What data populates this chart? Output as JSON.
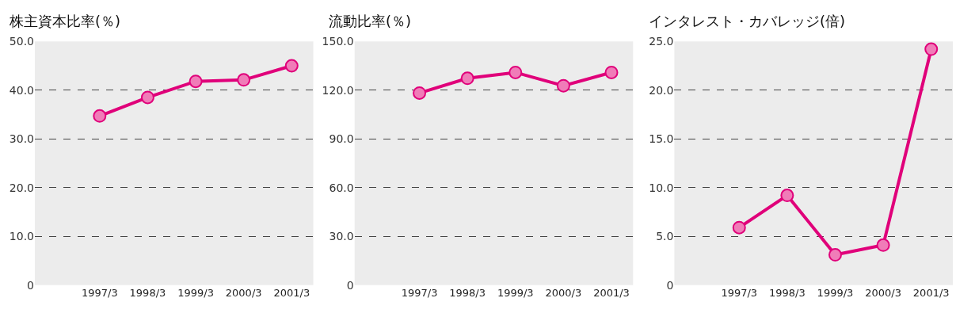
{
  "chart_data": [
    {
      "type": "line",
      "title": "株主資本比率(％)",
      "categories": [
        "1997/3",
        "1998/3",
        "1999/3",
        "2000/3",
        "2001/3"
      ],
      "series": [
        {
          "color": "#e0007a",
          "values": [
            34.7,
            38.5,
            41.8,
            42.1,
            45.0
          ]
        }
      ],
      "ylim": [
        0,
        50
      ],
      "yticks": [
        {
          "value": 0,
          "label": "0"
        },
        {
          "value": 10,
          "label": "10.0"
        },
        {
          "value": 20,
          "label": "20.0"
        },
        {
          "value": 30,
          "label": "30.0"
        },
        {
          "value": 40,
          "label": "40.0"
        },
        {
          "value": 50,
          "label": "50.0"
        }
      ],
      "grid": "y",
      "marker": "circle"
    },
    {
      "type": "line",
      "title": "流動比率(％)",
      "categories": [
        "1997/3",
        "1998/3",
        "1999/3",
        "2000/3",
        "2001/3"
      ],
      "series": [
        {
          "color": "#e0007a",
          "values": [
            118.2,
            127.3,
            130.9,
            122.7,
            130.9
          ]
        }
      ],
      "ylim": [
        0,
        150
      ],
      "yticks": [
        {
          "value": 0,
          "label": "0"
        },
        {
          "value": 30,
          "label": "30.0"
        },
        {
          "value": 60,
          "label": "60.0"
        },
        {
          "value": 90,
          "label": "90.0"
        },
        {
          "value": 120,
          "label": "120.0"
        },
        {
          "value": 150,
          "label": "150.0"
        }
      ],
      "grid": "y",
      "marker": "circle"
    },
    {
      "type": "line",
      "title": "インタレスト・カバレッジ(倍)",
      "categories": [
        "1997/3",
        "1998/3",
        "1999/3",
        "2000/3",
        "2001/3"
      ],
      "series": [
        {
          "color": "#e0007a",
          "values": [
            5.9,
            9.2,
            3.1,
            4.1,
            24.2
          ]
        }
      ],
      "ylim": [
        0,
        25
      ],
      "yticks": [
        {
          "value": 0,
          "label": "0"
        },
        {
          "value": 5,
          "label": "5.0"
        },
        {
          "value": 10,
          "label": "10.0"
        },
        {
          "value": 15,
          "label": "15.0"
        },
        {
          "value": 20,
          "label": "20.0"
        },
        {
          "value": 25,
          "label": "25.0"
        }
      ],
      "grid": "y",
      "marker": "circle"
    }
  ]
}
